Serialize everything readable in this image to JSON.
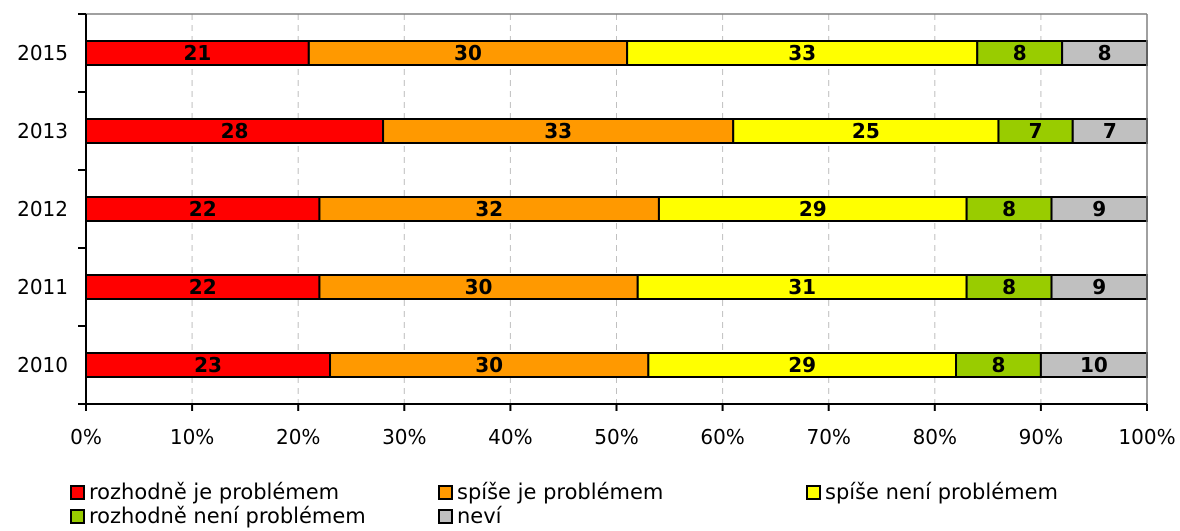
{
  "chart_data": {
    "type": "bar",
    "orientation": "horizontal",
    "stacked": true,
    "percent": true,
    "categories": [
      "2015",
      "2013",
      "2012",
      "2011",
      "2010"
    ],
    "series": [
      {
        "name": "rozhodně je problémem",
        "color": "#ff0000",
        "values": [
          21,
          28,
          22,
          22,
          23
        ]
      },
      {
        "name": "spíše je problémem",
        "color": "#ff9900",
        "values": [
          30,
          33,
          32,
          30,
          30
        ]
      },
      {
        "name": "spíše není problémem",
        "color": "#ffff00",
        "values": [
          33,
          25,
          29,
          31,
          29
        ]
      },
      {
        "name": "rozhodně není problémem",
        "color": "#99cc00",
        "values": [
          8,
          7,
          8,
          8,
          8
        ]
      },
      {
        "name": "neví",
        "color": "#c0c0c0",
        "values": [
          8,
          7,
          9,
          9,
          10
        ]
      }
    ],
    "x_ticks": [
      "0%",
      "10%",
      "20%",
      "30%",
      "40%",
      "50%",
      "60%",
      "70%",
      "80%",
      "90%",
      "100%"
    ],
    "xlim": [
      0,
      100
    ],
    "grid": "vertical dashed",
    "legend_position": "bottom"
  }
}
